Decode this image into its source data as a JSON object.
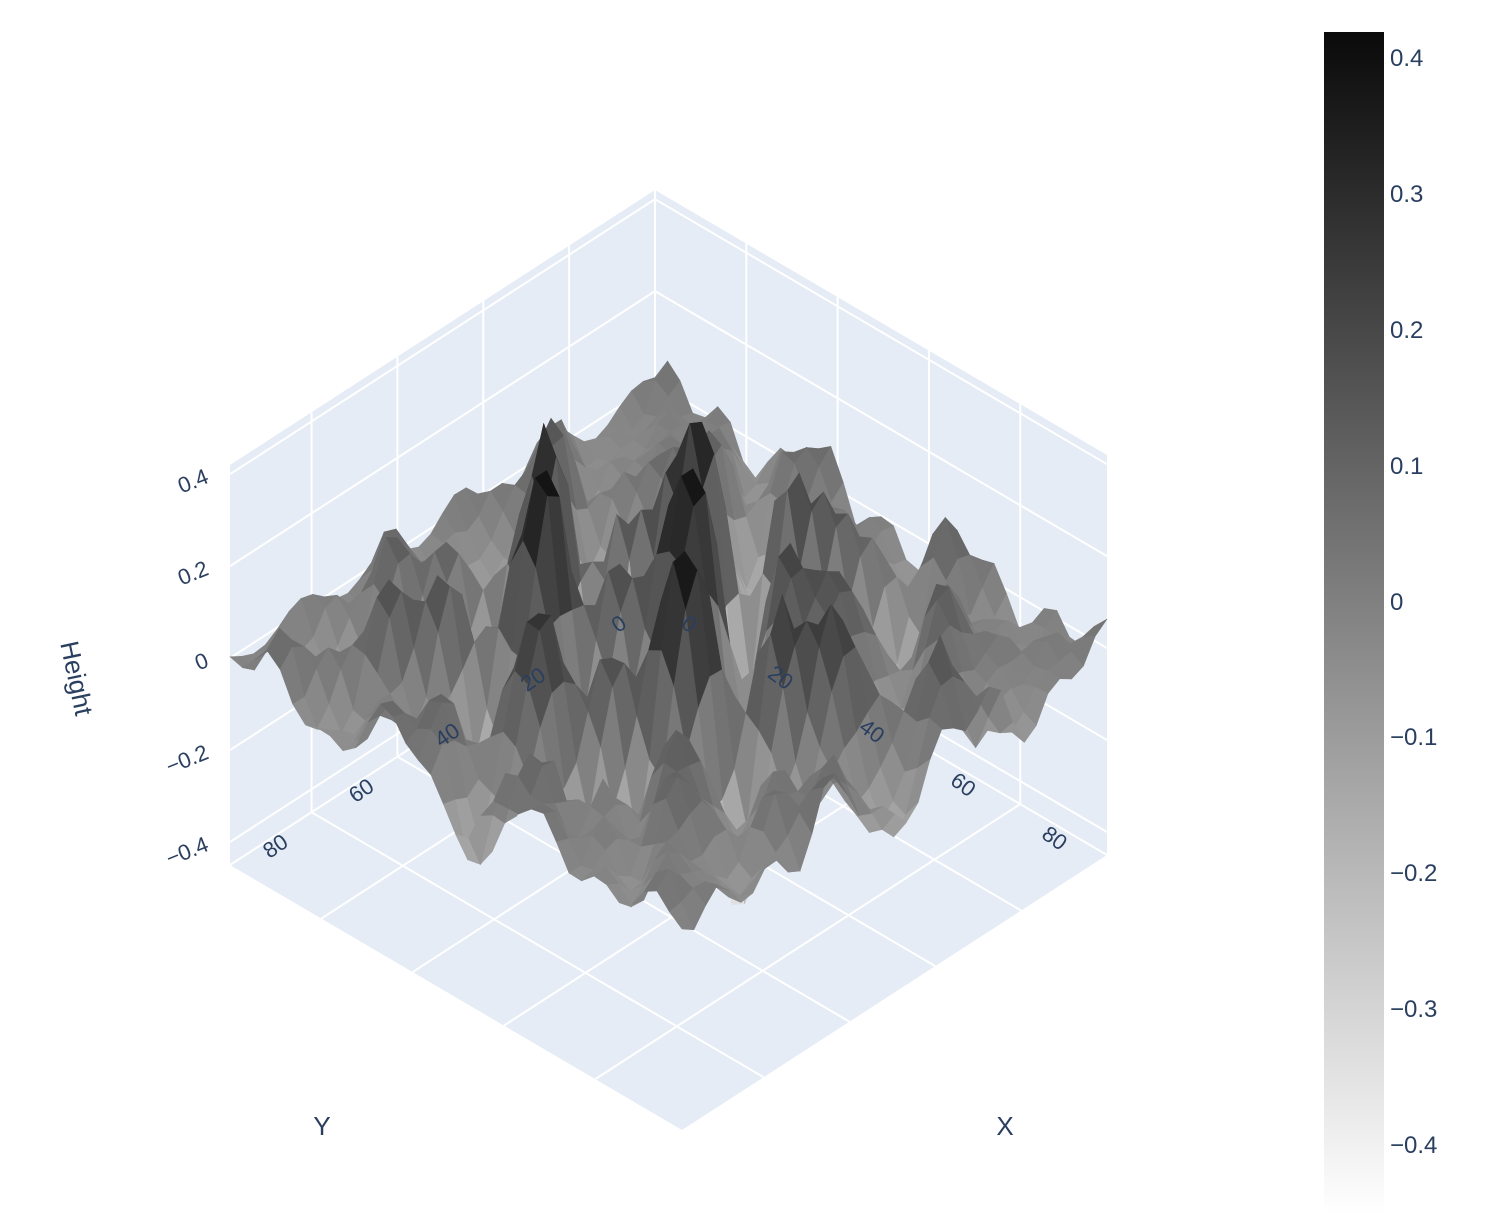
{
  "chart_data": {
    "type": "surface",
    "xlabel": "X",
    "ylabel": "Y",
    "zlabel": "Height",
    "x_ticks": [
      "0",
      "20",
      "40",
      "60",
      "80"
    ],
    "y_ticks": [
      "0",
      "20",
      "40",
      "60",
      "80"
    ],
    "z_ticks": [
      "−0.4",
      "−0.2",
      "0",
      "0.2",
      "0.4"
    ],
    "xlim": [
      0,
      99
    ],
    "ylim": [
      0,
      99
    ],
    "zlim": [
      -0.45,
      0.42
    ],
    "colorscale": "Greys",
    "colorbar": {
      "ticks": [
        "0.4",
        "0.3",
        "0.2",
        "0.1",
        "0",
        "−0.1",
        "−0.2",
        "−0.3",
        "−0.4"
      ],
      "tick_values": [
        0.4,
        0.3,
        0.2,
        0.1,
        0,
        -0.1,
        -0.2,
        -0.3,
        -0.4
      ],
      "range": [
        -0.45,
        0.42
      ],
      "color_high": "#0a0a0a",
      "color_low": "#ffffff"
    },
    "z_max": 0.4,
    "z_min": -0.45,
    "grid": true,
    "background_color": "#e5ecf6",
    "grid_color": "#ffffff"
  }
}
